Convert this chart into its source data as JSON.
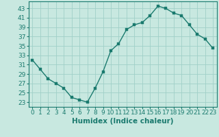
{
  "x": [
    0,
    1,
    2,
    3,
    4,
    5,
    6,
    7,
    8,
    9,
    10,
    11,
    12,
    13,
    14,
    15,
    16,
    17,
    18,
    19,
    20,
    21,
    22,
    23
  ],
  "y": [
    32,
    30,
    28,
    27,
    26,
    24,
    23.5,
    23,
    26,
    29.5,
    34,
    35.5,
    38.5,
    39.5,
    40,
    41.5,
    43.5,
    43,
    42,
    41.5,
    39.5,
    37.5,
    36.5,
    34.5
  ],
  "line_color": "#1a7a6e",
  "marker_color": "#1a7a6e",
  "bg_color": "#c8e8e0",
  "grid_color": "#a0d0c8",
  "xlabel": "Humidex (Indice chaleur)",
  "ylabel": "",
  "xlim": [
    -0.5,
    23.5
  ],
  "ylim": [
    22,
    44.5
  ],
  "yticks": [
    23,
    25,
    27,
    29,
    31,
    33,
    35,
    37,
    39,
    41,
    43
  ],
  "xtick_labels": [
    "0",
    "1",
    "2",
    "3",
    "4",
    "5",
    "6",
    "7",
    "8",
    "9",
    "10",
    "11",
    "12",
    "13",
    "14",
    "15",
    "16",
    "17",
    "18",
    "19",
    "20",
    "21",
    "22",
    "23"
  ],
  "xlabel_fontsize": 7.5,
  "tick_fontsize": 6.5,
  "line_width": 1.0,
  "marker_size": 2.5
}
